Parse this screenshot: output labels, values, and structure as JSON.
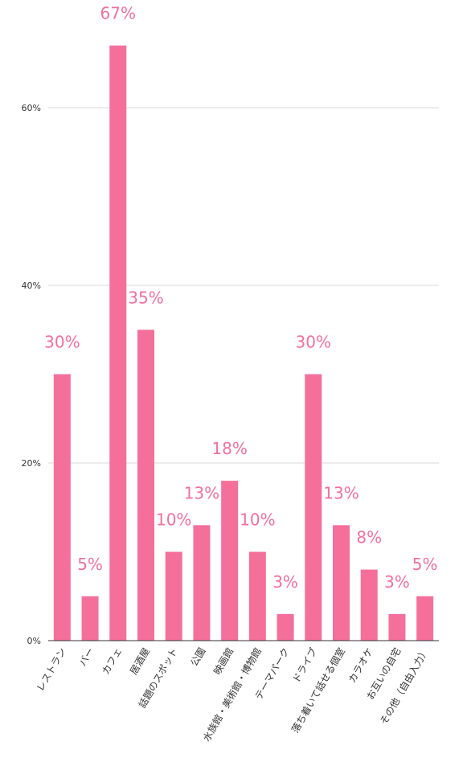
{
  "chart_data": {
    "type": "bar",
    "categories": [
      "レストラン",
      "バー",
      "カフェ",
      "居酒屋",
      "話題のスポット",
      "公園",
      "映画館",
      "水族館・美術館・博物館",
      "テーマパーク",
      "ドライブ",
      "落ち着いて話せる個室",
      "カラオケ",
      "お互いの自宅",
      "その他（自由入力）"
    ],
    "values": [
      30,
      5,
      67,
      35,
      10,
      13,
      18,
      10,
      3,
      30,
      13,
      8,
      3,
      5
    ],
    "data_labels": [
      "30%",
      "5%",
      "67%",
      "35%",
      "10%",
      "13%",
      "18%",
      "10%",
      "3%",
      "30%",
      "13%",
      "8%",
      "3%",
      "5%"
    ],
    "yticks": [
      {
        "value": 0,
        "label": "0%"
      },
      {
        "value": 20,
        "label": "20%"
      },
      {
        "value": 40,
        "label": "40%"
      },
      {
        "value": 60,
        "label": "60%"
      }
    ],
    "ylim": [
      0,
      70
    ],
    "grid": true,
    "legend": "none",
    "colors": {
      "bar": "#f4709b",
      "label": "#f4709b"
    }
  }
}
